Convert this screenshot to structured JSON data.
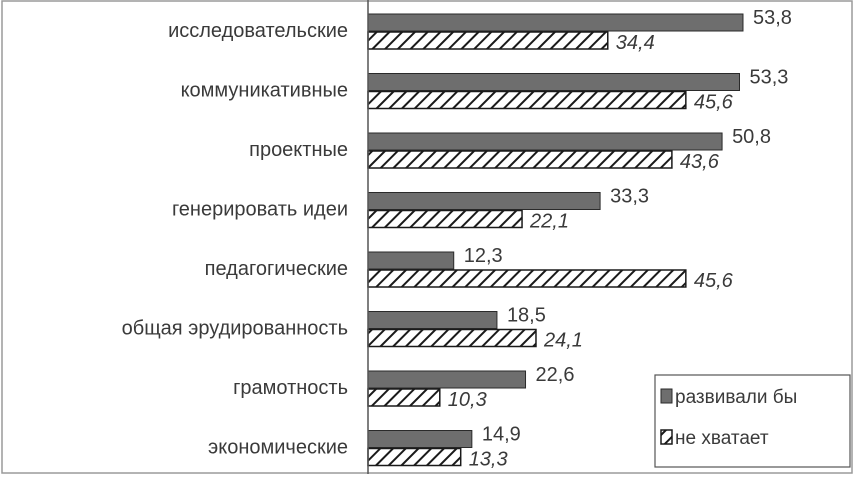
{
  "chart_data": {
    "type": "bar",
    "orientation": "horizontal",
    "categories": [
      "исследовательские",
      "коммуникативные",
      "проектные",
      "генерировать идеи",
      "педагогические",
      "общая эрудированность",
      "грамотность",
      "экономические"
    ],
    "series": [
      {
        "name": "развивали бы",
        "values": [
          53.8,
          53.3,
          50.8,
          33.3,
          12.3,
          18.5,
          22.6,
          14.9
        ],
        "labels": [
          "53,8",
          "53,3",
          "50,8",
          "33,3",
          "12,3",
          "18,5",
          "22,6",
          "14,9"
        ],
        "color": "#6e6e6e",
        "pattern": "solid"
      },
      {
        "name": "не хватает",
        "values": [
          34.4,
          45.6,
          43.6,
          22.1,
          45.6,
          24.1,
          10.3,
          13.3
        ],
        "labels": [
          "34,4",
          "45,6",
          "43,6",
          "22,1",
          "45,6",
          "24,1",
          "10,3",
          "13,3"
        ],
        "color": "#1a1a1a",
        "pattern": "diagonal-hatch"
      }
    ],
    "xlim": [
      0,
      70
    ],
    "grid": false,
    "legend_position": "bottom-right"
  }
}
